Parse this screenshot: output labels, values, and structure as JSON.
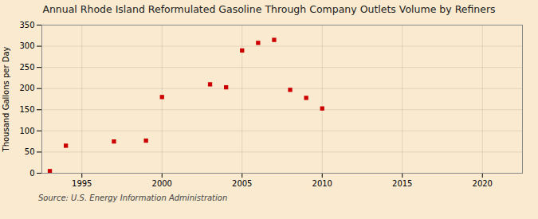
{
  "chart_data": {
    "type": "scatter",
    "title": "Annual Rhode Island Reformulated Gasoline Through Company Outlets Volume by Refiners",
    "ylabel": "Thousand Gallons per Day",
    "caption": "Source: U.S. Energy Information Administration",
    "color": "#cc0000",
    "marker": "square",
    "grid": true,
    "x": [
      1993,
      1994,
      1997,
      1999,
      2000,
      2003,
      2004,
      2005,
      2006,
      2007,
      2008,
      2009,
      2010
    ],
    "values": [
      5,
      65,
      75,
      77,
      180,
      210,
      203,
      290,
      308,
      315,
      197,
      178,
      153
    ],
    "xlim": [
      1992.5,
      2022.5
    ],
    "xticks": [
      1995,
      2000,
      2005,
      2010,
      2015,
      2020
    ],
    "ylim": [
      0,
      350
    ],
    "yticks": [
      0,
      50,
      100,
      150,
      200,
      250,
      300,
      350
    ]
  }
}
